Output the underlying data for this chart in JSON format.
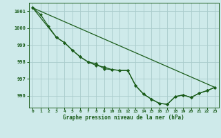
{
  "title": "Graphe pression niveau de la mer (hPa)",
  "background_color": "#ceeaea",
  "grid_color": "#aacccc",
  "line_color": "#1a5c1a",
  "xlim": [
    -0.5,
    23.5
  ],
  "ylim": [
    995.3,
    1001.5
  ],
  "yticks": [
    996,
    997,
    998,
    999,
    1000,
    1001
  ],
  "xticks": [
    0,
    1,
    2,
    3,
    4,
    5,
    6,
    7,
    8,
    9,
    10,
    11,
    12,
    13,
    14,
    15,
    16,
    17,
    18,
    19,
    20,
    21,
    22,
    23
  ],
  "series_straight": {
    "x": [
      0,
      23
    ],
    "y": [
      1001.2,
      996.5
    ]
  },
  "series_with_markers1": {
    "x": [
      0,
      1,
      2,
      3,
      4,
      5,
      6,
      7,
      8,
      9,
      10,
      11,
      12,
      13,
      14,
      15,
      16,
      17,
      18,
      19,
      20,
      21,
      22,
      23
    ],
    "y": [
      1001.2,
      1000.8,
      1000.1,
      999.45,
      999.15,
      998.7,
      998.3,
      998.0,
      997.8,
      997.7,
      997.55,
      997.5,
      997.5,
      996.6,
      996.1,
      995.8,
      995.55,
      995.5,
      995.95,
      996.05,
      995.9,
      996.15,
      996.3,
      996.5
    ]
  },
  "series_with_markers2": {
    "x": [
      0,
      3,
      4,
      5,
      6,
      7,
      8,
      9,
      10,
      11,
      12,
      13,
      14,
      15,
      16,
      17,
      18,
      19,
      20,
      21,
      22,
      23
    ],
    "y": [
      1001.2,
      999.45,
      999.15,
      998.7,
      998.3,
      998.0,
      997.9,
      997.6,
      997.55,
      997.5,
      997.5,
      996.6,
      996.1,
      995.8,
      995.55,
      995.5,
      995.95,
      996.05,
      995.9,
      996.15,
      996.3,
      996.5
    ]
  }
}
